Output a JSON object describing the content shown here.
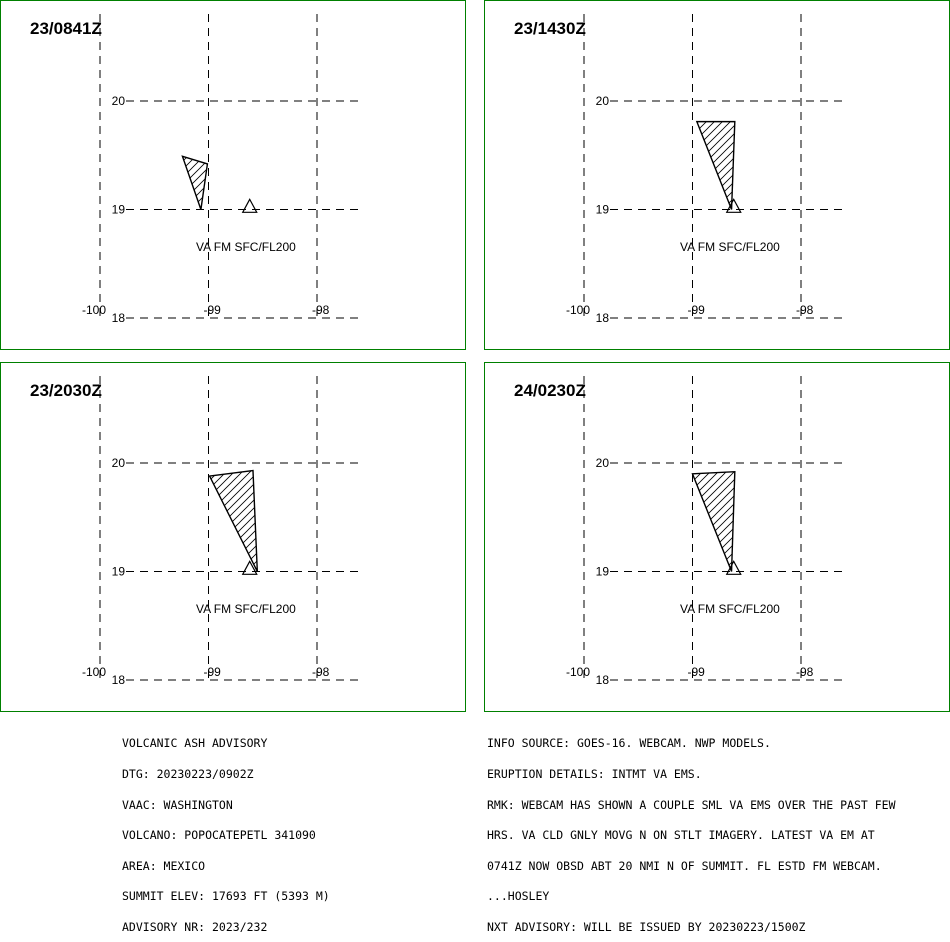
{
  "panels": [
    {
      "time": "23/0841Z",
      "va_text": "VA FM SFC/FL200",
      "lon_labels": [
        "-100",
        "-99",
        "-98"
      ],
      "lat_labels": [
        "20",
        "19",
        "18"
      ],
      "ash_polygon": [
        [
          -99.24,
          19.49
        ],
        [
          -99.01,
          19.42
        ],
        [
          -99.07,
          19.0
        ]
      ]
    },
    {
      "time": "23/1430Z",
      "va_text": "VA FM SFC/FL200",
      "lon_labels": [
        "-100",
        "-99",
        "-98"
      ],
      "lat_labels": [
        "20",
        "19",
        "18"
      ],
      "ash_polygon": [
        [
          -98.96,
          19.81
        ],
        [
          -98.61,
          19.81
        ],
        [
          -98.64,
          19.0
        ]
      ]
    },
    {
      "time": "23/2030Z",
      "va_text": "VA FM SFC/FL200",
      "lon_labels": [
        "-100",
        "-99",
        "-98"
      ],
      "lat_labels": [
        "20",
        "19",
        "18"
      ],
      "ash_polygon": [
        [
          -98.99,
          19.88
        ],
        [
          -98.59,
          19.93
        ],
        [
          -98.55,
          19.0
        ]
      ]
    },
    {
      "time": "24/0230Z",
      "va_text": "VA FM SFC/FL200",
      "lon_labels": [
        "-100",
        "-99",
        "-98"
      ],
      "lat_labels": [
        "20",
        "19",
        "18"
      ],
      "ash_polygon": [
        [
          -99.0,
          19.9
        ],
        [
          -98.61,
          19.92
        ],
        [
          -98.64,
          19.0
        ]
      ]
    }
  ],
  "volcano_marker_icon": "volcano-triangle-icon",
  "advisory_left": [
    "VOLCANIC ASH ADVISORY",
    "DTG: 20230223/0902Z",
    "VAAC: WASHINGTON",
    "VOLCANO: POPOCATEPETL 341090",
    "AREA: MEXICO",
    "SUMMIT ELEV: 17693 FT (5393 M)",
    "ADVISORY NR: 2023/232"
  ],
  "advisory_right": [
    "INFO SOURCE: GOES-16. WEBCAM. NWP MODELS.",
    "ERUPTION DETAILS: INTMT VA EMS.",
    "RMK: WEBCAM HAS SHOWN A COUPLE SML VA EMS OVER THE PAST FEW",
    "HRS. VA CLD GNLY MOVG N ON STLT IMAGERY. LATEST VA EM AT",
    "0741Z NOW OBSD ABT 20 NMI N OF SUMMIT. FL ESTD FM WEBCAM.",
    "...HOSLEY",
    "NXT ADVISORY: WILL BE ISSUED BY 20230223/1500Z"
  ],
  "colors": {
    "border": "#008000",
    "grid": "#000000",
    "text": "#000000"
  }
}
